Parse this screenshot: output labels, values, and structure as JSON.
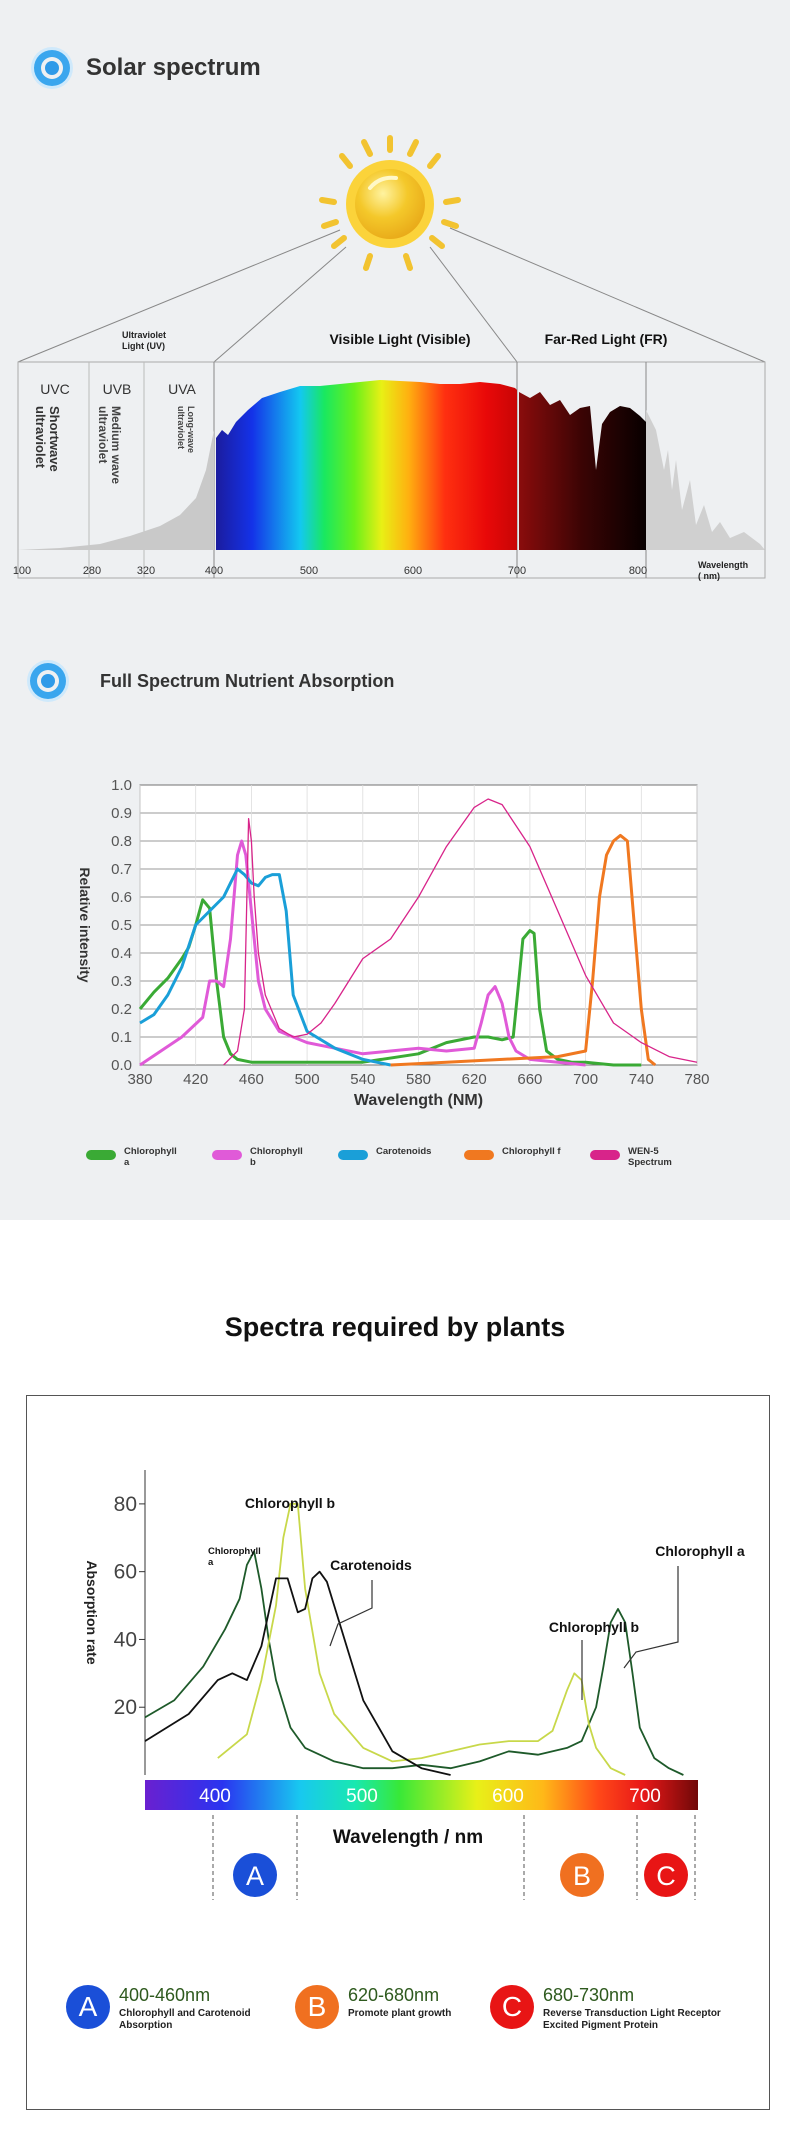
{
  "section1": {
    "title": "Solar spectrum"
  },
  "solar": {
    "regions": {
      "uv": "Ultraviolet Light (UV)",
      "visible": "Visible Light (Visible)",
      "fr": "Far-Red Light (FR)"
    },
    "bands": [
      {
        "code": "UVC",
        "name": "Shortwave ultraviolet"
      },
      {
        "code": "UVB",
        "name": "Medium wave ultraviolet"
      },
      {
        "code": "UVA",
        "name": "Long-wave ultraviolet"
      }
    ],
    "ticks": [
      "100",
      "280",
      "320",
      "400",
      "500",
      "600",
      "700",
      "800"
    ],
    "axis_label": "Wavelength ( nm)"
  },
  "section2": {
    "title": "Full Spectrum Nutrient Absorption"
  },
  "section3": {
    "title": "Spectra required by plants"
  },
  "chart_data": [
    {
      "type": "line",
      "xlabel": "Wavelength (NM)",
      "ylabel": "Relative intensity",
      "xlim": [
        380,
        780
      ],
      "ylim": [
        0,
        1.0
      ],
      "xticks": [
        "380",
        "420",
        "460",
        "500",
        "540",
        "580",
        "620",
        "660",
        "700",
        "740",
        "780"
      ],
      "yticks": [
        "0.0",
        "0.1",
        "0.2",
        "0.3",
        "0.4",
        "0.5",
        "0.6",
        "0.7",
        "0.8",
        "0.9",
        "1.0"
      ],
      "grid": true,
      "legend_position": "bottom",
      "series": [
        {
          "name": "Chlorophyll a",
          "color": "#3aaa35",
          "x": [
            380,
            390,
            400,
            410,
            415,
            420,
            425,
            430,
            435,
            440,
            445,
            450,
            460,
            480,
            500,
            540,
            580,
            600,
            620,
            630,
            640,
            648,
            652,
            655,
            660,
            663,
            667,
            672,
            680,
            690,
            700,
            720,
            740
          ],
          "y": [
            0.2,
            0.26,
            0.31,
            0.38,
            0.42,
            0.5,
            0.59,
            0.56,
            0.3,
            0.1,
            0.04,
            0.02,
            0.01,
            0.01,
            0.01,
            0.01,
            0.04,
            0.08,
            0.1,
            0.1,
            0.09,
            0.1,
            0.3,
            0.45,
            0.48,
            0.47,
            0.2,
            0.05,
            0.02,
            0.01,
            0.01,
            0.0,
            0.0
          ]
        },
        {
          "name": "Chlorophyll b",
          "color": "#e05ad8",
          "x": [
            380,
            395,
            410,
            425,
            430,
            435,
            440,
            445,
            450,
            453,
            456,
            460,
            465,
            470,
            480,
            500,
            520,
            540,
            560,
            580,
            600,
            620,
            625,
            630,
            635,
            640,
            645,
            650,
            660,
            680,
            700
          ],
          "y": [
            0.0,
            0.05,
            0.1,
            0.17,
            0.3,
            0.3,
            0.28,
            0.45,
            0.75,
            0.8,
            0.75,
            0.55,
            0.3,
            0.2,
            0.12,
            0.08,
            0.06,
            0.04,
            0.05,
            0.06,
            0.05,
            0.06,
            0.15,
            0.25,
            0.28,
            0.22,
            0.1,
            0.05,
            0.02,
            0.01,
            0.0
          ]
        },
        {
          "name": "Carotenoids",
          "color": "#1a9fd8",
          "x": [
            380,
            390,
            400,
            410,
            420,
            430,
            440,
            445,
            450,
            455,
            460,
            465,
            470,
            475,
            480,
            485,
            490,
            500,
            520,
            540,
            560
          ],
          "y": [
            0.15,
            0.18,
            0.25,
            0.35,
            0.5,
            0.55,
            0.6,
            0.65,
            0.7,
            0.68,
            0.65,
            0.64,
            0.67,
            0.68,
            0.68,
            0.55,
            0.25,
            0.12,
            0.06,
            0.02,
            0.0
          ]
        },
        {
          "name": "Chlorophyll f",
          "color": "#f07820",
          "x": [
            560,
            600,
            640,
            680,
            700,
            705,
            710,
            715,
            720,
            725,
            730,
            735,
            740,
            745,
            750
          ],
          "y": [
            0.0,
            0.01,
            0.02,
            0.03,
            0.05,
            0.3,
            0.6,
            0.75,
            0.8,
            0.82,
            0.8,
            0.5,
            0.2,
            0.02,
            0.0
          ]
        },
        {
          "name": "WEN-5 Spectrum",
          "color": "#d8248a",
          "x": [
            440,
            450,
            455,
            458,
            460,
            462,
            465,
            470,
            480,
            490,
            500,
            510,
            520,
            540,
            560,
            580,
            600,
            620,
            630,
            640,
            660,
            680,
            700,
            720,
            740,
            760,
            780
          ],
          "y": [
            0.0,
            0.05,
            0.2,
            0.88,
            0.8,
            0.6,
            0.4,
            0.25,
            0.13,
            0.1,
            0.11,
            0.15,
            0.22,
            0.38,
            0.45,
            0.6,
            0.78,
            0.92,
            0.95,
            0.93,
            0.78,
            0.55,
            0.32,
            0.15,
            0.08,
            0.03,
            0.01
          ]
        }
      ]
    },
    {
      "type": "line",
      "xlabel": "Wavelength / nm",
      "ylabel": "Absorption rate",
      "xlim": [
        350,
        730
      ],
      "ylim": [
        0,
        90
      ],
      "xticks": [
        "400",
        "500",
        "600",
        "700"
      ],
      "yticks": [
        "20",
        "40",
        "60",
        "80"
      ],
      "annotations": [
        {
          "text": "Chlorophyll b",
          "x": 450
        },
        {
          "text": "Chlorophyll a",
          "x": 430
        },
        {
          "text": "Carotenoids",
          "x": 470
        },
        {
          "text": "Chlorophyll b",
          "x": 643
        },
        {
          "text": "Chlorophyll a",
          "x": 680
        }
      ],
      "series": [
        {
          "name": "Chlorophyll a",
          "color": "#1e5a2a",
          "x": [
            350,
            370,
            390,
            405,
            415,
            420,
            425,
            430,
            435,
            440,
            450,
            460,
            480,
            500,
            520,
            540,
            560,
            580,
            600,
            620,
            640,
            650,
            660,
            665,
            670,
            675,
            680,
            685,
            690,
            700,
            710,
            720
          ],
          "y": [
            17,
            22,
            32,
            43,
            52,
            62,
            66,
            55,
            40,
            28,
            14,
            8,
            4,
            2,
            2,
            3,
            2,
            4,
            7,
            6,
            8,
            10,
            20,
            32,
            45,
            49,
            45,
            30,
            14,
            5,
            2,
            0
          ]
        },
        {
          "name": "Chlorophyll b",
          "color": "#c8d84a",
          "x": [
            400,
            420,
            430,
            440,
            445,
            450,
            455,
            460,
            470,
            480,
            500,
            520,
            540,
            560,
            580,
            600,
            620,
            630,
            640,
            645,
            650,
            655,
            660,
            670,
            680
          ],
          "y": [
            5,
            12,
            28,
            50,
            70,
            80,
            80,
            55,
            30,
            18,
            8,
            4,
            5,
            7,
            9,
            10,
            10,
            13,
            25,
            30,
            28,
            15,
            8,
            2,
            0
          ]
        },
        {
          "name": "Carotenoids",
          "color": "#111111",
          "x": [
            350,
            380,
            400,
            410,
            420,
            430,
            440,
            448,
            455,
            460,
            465,
            470,
            475,
            480,
            490,
            500,
            520,
            540,
            560
          ],
          "y": [
            10,
            18,
            28,
            30,
            28,
            38,
            58,
            58,
            48,
            49,
            58,
            60,
            57,
            50,
            36,
            22,
            7,
            2,
            0
          ]
        }
      ]
    }
  ],
  "spectrum_bar": {
    "labels": [
      "400",
      "500",
      "600",
      "700"
    ]
  },
  "bands_b": [
    {
      "letter": "A",
      "color": "#1a4fd8",
      "range": "400-460nm",
      "desc": "Chlorophyll and Carotenoid Absorption"
    },
    {
      "letter": "B",
      "color": "#f07020",
      "range": "620-680nm",
      "desc": "Promote plant growth"
    },
    {
      "letter": "C",
      "color": "#e81515",
      "range": "680-730nm",
      "desc": "Reverse Transduction Light Receptor Excited Pigment Protein"
    }
  ]
}
